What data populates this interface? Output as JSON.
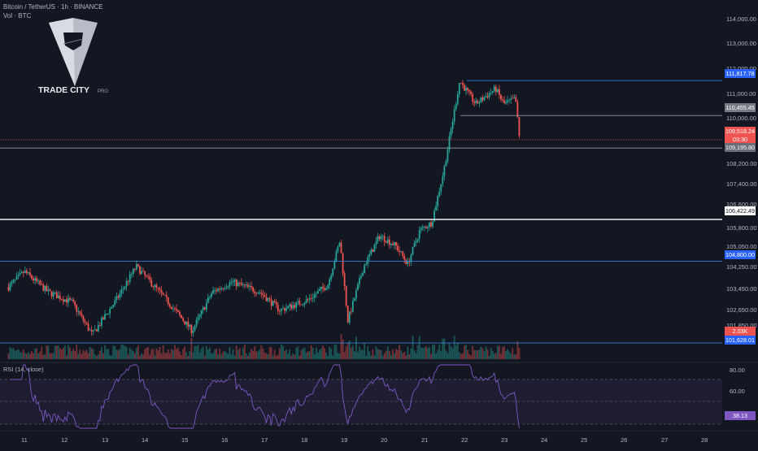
{
  "header": {
    "symbol_line": "Bitcoin / TetherUS · 1h · BINANCE",
    "volume_line": "Vol · BTC"
  },
  "logo": {
    "brand": "TRADE CITY",
    "brand_suffix": "PRO"
  },
  "price_axis": {
    "ticks": [
      "114,000.00",
      "113,000.00",
      "112,000.00",
      "111,000.00",
      "110,000.00",
      "108,200.00",
      "107,400.00",
      "106,600.00",
      "105,800.00",
      "105,050.00",
      "104,250.00",
      "103,450.00",
      "102,650.00",
      "101,850.00"
    ]
  },
  "time_axis": {
    "ticks": [
      "11",
      "12",
      "13",
      "14",
      "15",
      "16",
      "17",
      "18",
      "19",
      "20",
      "21",
      "22",
      "23",
      "24",
      "25",
      "26",
      "27",
      "28"
    ]
  },
  "price_tags": {
    "level_top": "111,817.78",
    "level_mid": "110,455.45",
    "last_price": "109,518.24",
    "countdown": "03:30",
    "level_gray": "109,195.80",
    "level_white": "106,422.49",
    "level_blue": "104,800.00",
    "volume": "2.03K",
    "level_bottom": "101,628.01"
  },
  "rsi": {
    "label": "RSI (14, close)",
    "ticks": [
      "80.00",
      "60.00"
    ],
    "value": "38.13"
  },
  "colors": {
    "background": "#131722",
    "up": "#26a69a",
    "down": "#ef5350",
    "blue_level": "#2962ff",
    "rsi_line": "#7e57c2",
    "rsi_band": "#2a2340"
  },
  "chart_data": {
    "type": "candlestick",
    "title": "Bitcoin / TetherUS · 1h · BINANCE",
    "ylim": [
      101000,
      114500
    ],
    "x_ticks": [
      "11",
      "12",
      "13",
      "14",
      "15",
      "16",
      "17",
      "18",
      "19",
      "20",
      "21",
      "22",
      "23",
      "24",
      "25",
      "26",
      "27",
      "28"
    ],
    "horizontal_levels": [
      111817.78,
      110455.45,
      109195.8,
      106422.49,
      104800.0,
      101628.01
    ],
    "last_price": 109518.24,
    "trend_anchors": [
      {
        "day": 10.6,
        "price": 103800
      },
      {
        "day": 11.0,
        "price": 104400
      },
      {
        "day": 11.6,
        "price": 103600
      },
      {
        "day": 12.2,
        "price": 103200
      },
      {
        "day": 12.7,
        "price": 101950
      },
      {
        "day": 13.3,
        "price": 103300
      },
      {
        "day": 13.8,
        "price": 104600
      },
      {
        "day": 14.5,
        "price": 103400
      },
      {
        "day": 15.2,
        "price": 102100
      },
      {
        "day": 15.7,
        "price": 103600
      },
      {
        "day": 16.2,
        "price": 104000
      },
      {
        "day": 16.9,
        "price": 103600
      },
      {
        "day": 17.4,
        "price": 102900
      },
      {
        "day": 18.1,
        "price": 103300
      },
      {
        "day": 18.6,
        "price": 103900
      },
      {
        "day": 18.9,
        "price": 105600
      },
      {
        "day": 19.1,
        "price": 102500
      },
      {
        "day": 19.5,
        "price": 104600
      },
      {
        "day": 19.9,
        "price": 105800
      },
      {
        "day": 20.3,
        "price": 105400
      },
      {
        "day": 20.6,
        "price": 104700
      },
      {
        "day": 20.9,
        "price": 106000
      },
      {
        "day": 21.2,
        "price": 106300
      },
      {
        "day": 21.5,
        "price": 108300
      },
      {
        "day": 21.9,
        "price": 111800
      },
      {
        "day": 22.3,
        "price": 110900
      },
      {
        "day": 22.8,
        "price": 111500
      },
      {
        "day": 23.0,
        "price": 110900
      },
      {
        "day": 23.3,
        "price": 111100
      },
      {
        "day": 23.4,
        "price": 109500
      }
    ],
    "rsi_value": 38.13,
    "rsi_levels": [
      70,
      50,
      30
    ]
  }
}
